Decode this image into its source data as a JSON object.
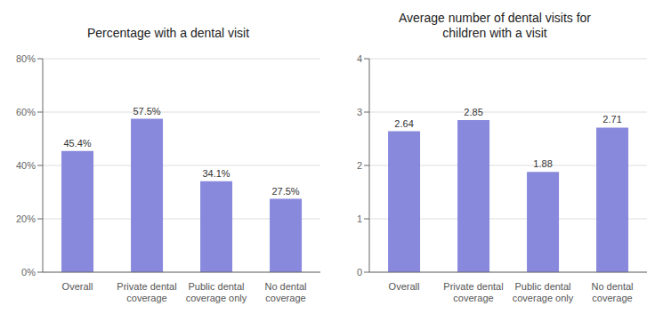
{
  "chart_data": [
    {
      "type": "bar",
      "title": "Percentage with a dental visit",
      "categories": [
        "Overall",
        "Private dental\ncoverage",
        "Public dental\ncoverage only",
        "No dental\ncoverage"
      ],
      "values": [
        0.454,
        0.575,
        0.341,
        0.275
      ],
      "value_labels": [
        "45.4%",
        "57.5%",
        "34.1%",
        "27.5%"
      ],
      "data_labels": true,
      "color": "#8888dd",
      "ylim": [
        0,
        0.8
      ],
      "yticks": [
        {
          "value": 0.0,
          "label": "0%"
        },
        {
          "value": 0.2,
          "label": "20%"
        },
        {
          "value": 0.4,
          "label": "40%"
        },
        {
          "value": 0.6,
          "label": "60%"
        },
        {
          "value": 0.8,
          "label": "80%"
        }
      ],
      "grid": true
    },
    {
      "type": "bar",
      "title": "Average number of dental visits for\nchildren with a visit",
      "categories": [
        "Overall",
        "Private dental\ncoverage",
        "Public dental\ncoverage only",
        "No dental\ncoverage"
      ],
      "values": [
        2.64,
        2.85,
        1.88,
        2.71
      ],
      "data_labels": true,
      "color": "#8888dd",
      "ylim": [
        0,
        4
      ],
      "yticks": [
        0,
        1,
        2,
        3,
        4
      ],
      "grid": true
    }
  ]
}
